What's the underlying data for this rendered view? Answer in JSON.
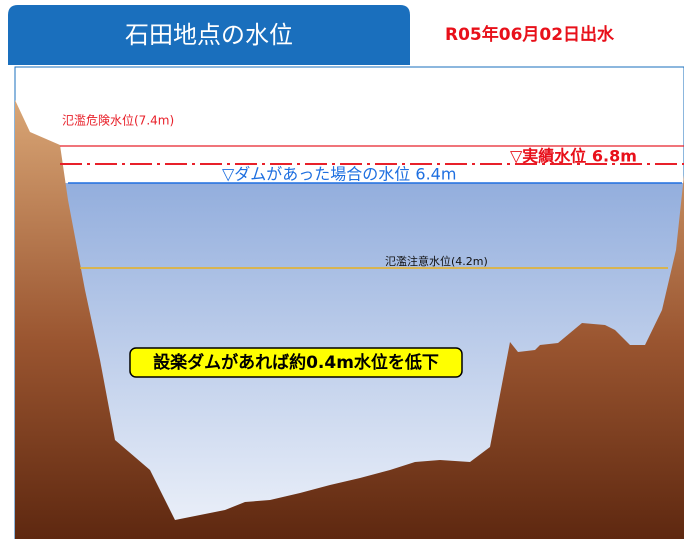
{
  "header": {
    "title": "石田地点の水位",
    "date": "R05年06月02日出水"
  },
  "levels": {
    "danger": "氾濫危険水位(7.4m)",
    "actual": "▽実績水位 6.8m",
    "with_dam": "▽ダムがあった場合の水位 6.4m",
    "caution": "氾濫注意水位(4.2m)"
  },
  "callout": "設楽ダムがあれば約0.4m水位を低下"
}
